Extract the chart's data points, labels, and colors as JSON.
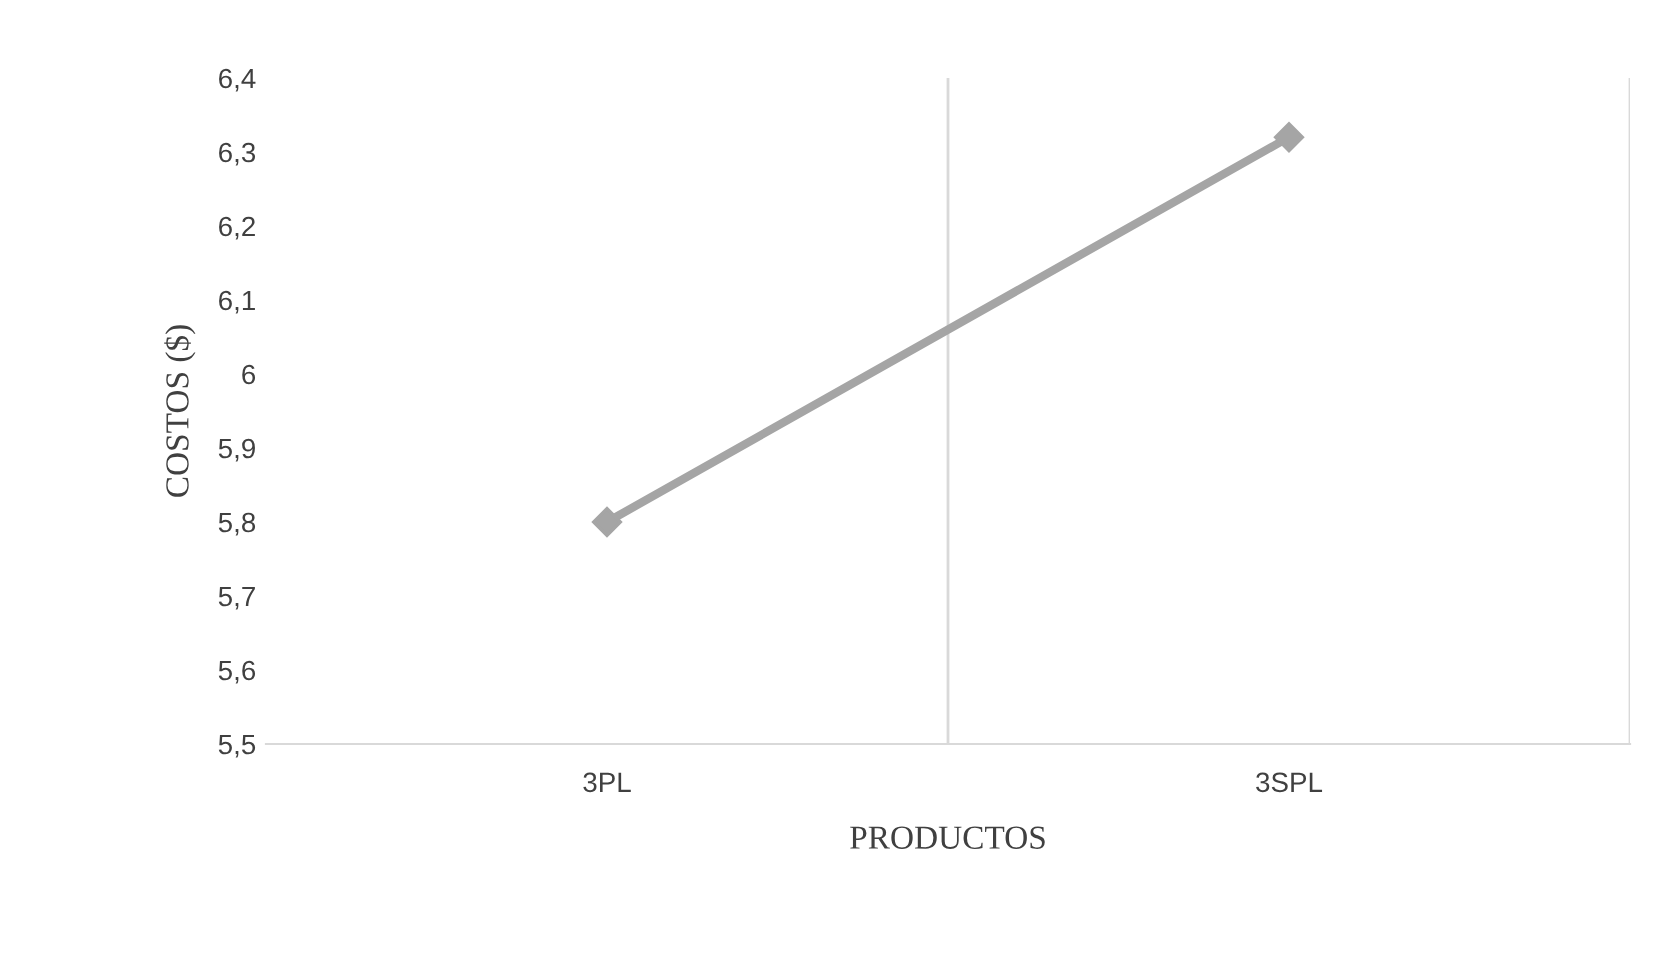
{
  "chart_data": {
    "type": "line",
    "xlabel": "PRODUCTOS",
    "ylabel": "COSTOS ($)",
    "categories": [
      "3PL",
      "3SPL"
    ],
    "series": [
      {
        "color": "#a5a5a5",
        "values": [
          5.8,
          6.32
        ]
      }
    ],
    "ylim": [
      5.5,
      6.4
    ],
    "yticks": [
      {
        "value": 5.5,
        "label": "5,5"
      },
      {
        "value": 5.6,
        "label": "5,6"
      },
      {
        "value": 5.7,
        "label": "5,7"
      },
      {
        "value": 5.8,
        "label": "5,8"
      },
      {
        "value": 5.9,
        "label": "5,9"
      },
      {
        "value": 6,
        "label": "6"
      },
      {
        "value": 6.1,
        "label": "6,1"
      },
      {
        "value": 6.2,
        "label": "6,2"
      },
      {
        "value": 6.3,
        "label": "6,3"
      },
      {
        "value": 6.4,
        "label": "6,4"
      }
    ],
    "grid": "x",
    "marker": "diamond",
    "line_style": "solid"
  }
}
